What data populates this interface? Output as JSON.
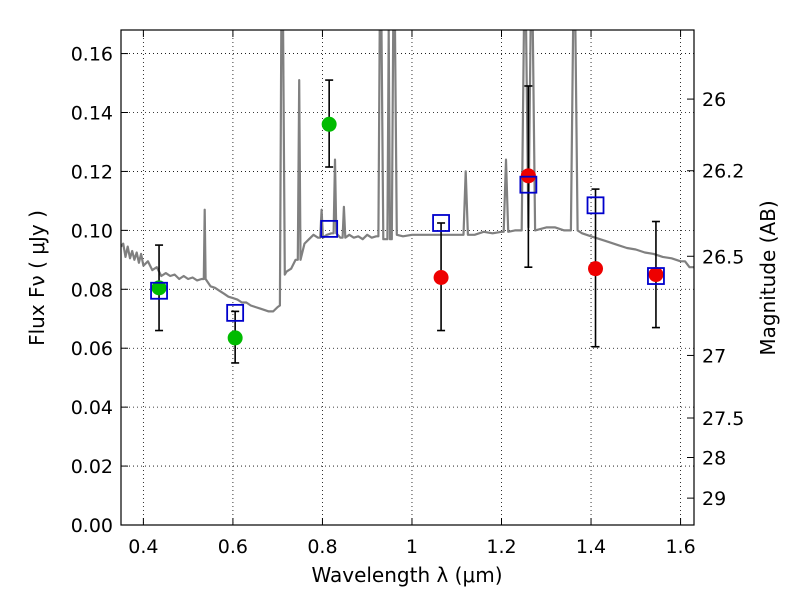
{
  "chart_data": {
    "type": "scatter",
    "title": "",
    "xlabel": "Wavelength  λ (μm)",
    "ylabel": "Flux  Fν  ( μJy )",
    "y2label": "Magnitude (AB)",
    "xlim": [
      0.35,
      1.63
    ],
    "ylim": [
      0.0,
      0.168
    ],
    "grid": true,
    "x_ticks": [
      {
        "value": 0.4,
        "label": "0.4"
      },
      {
        "value": 0.6,
        "label": "0.6"
      },
      {
        "value": 0.8,
        "label": "0.8"
      },
      {
        "value": 1.0,
        "label": "1"
      },
      {
        "value": 1.2,
        "label": "1.2"
      },
      {
        "value": 1.4,
        "label": "1.4"
      },
      {
        "value": 1.6,
        "label": "1.6"
      }
    ],
    "y_ticks": [
      {
        "value": 0.0,
        "label": "0.00"
      },
      {
        "value": 0.02,
        "label": "0.02"
      },
      {
        "value": 0.04,
        "label": "0.04"
      },
      {
        "value": 0.06,
        "label": "0.06"
      },
      {
        "value": 0.08,
        "label": "0.08"
      },
      {
        "value": 0.1,
        "label": "0.10"
      },
      {
        "value": 0.12,
        "label": "0.12"
      },
      {
        "value": 0.14,
        "label": "0.14"
      },
      {
        "value": 0.16,
        "label": "0.16"
      }
    ],
    "y2_ticks": [
      {
        "value": 26,
        "label": "26"
      },
      {
        "value": 26.2,
        "label": "26.2"
      },
      {
        "value": 26.5,
        "label": "26.5"
      },
      {
        "value": 27,
        "label": "27"
      },
      {
        "value": 27.5,
        "label": "27.5"
      },
      {
        "value": 28,
        "label": "28"
      },
      {
        "value": 29,
        "label": "29"
      }
    ],
    "colors": {
      "model": "#808080",
      "green": "#00bb00",
      "red": "#ee0000",
      "model_points": "#0000cc",
      "errorbar": "#000000"
    },
    "series": [
      {
        "kind": "line",
        "color_key": "model",
        "points": [
          [
            0.35,
            0.0945
          ],
          [
            0.355,
            0.0955
          ],
          [
            0.36,
            0.091
          ],
          [
            0.365,
            0.0945
          ],
          [
            0.37,
            0.0905
          ],
          [
            0.375,
            0.093
          ],
          [
            0.38,
            0.09
          ],
          [
            0.385,
            0.0925
          ],
          [
            0.39,
            0.089
          ],
          [
            0.395,
            0.092
          ],
          [
            0.4,
            0.088
          ],
          [
            0.41,
            0.0895
          ],
          [
            0.42,
            0.0865
          ],
          [
            0.43,
            0.0875
          ],
          [
            0.44,
            0.0845
          ],
          [
            0.45,
            0.0855
          ],
          [
            0.46,
            0.0845
          ],
          [
            0.47,
            0.085
          ],
          [
            0.48,
            0.0835
          ],
          [
            0.49,
            0.0845
          ],
          [
            0.5,
            0.0835
          ],
          [
            0.51,
            0.084
          ],
          [
            0.52,
            0.083
          ],
          [
            0.53,
            0.0835
          ],
          [
            0.535,
            0.0835
          ],
          [
            0.537,
            0.107
          ],
          [
            0.539,
            0.0835
          ],
          [
            0.55,
            0.081
          ],
          [
            0.56,
            0.0805
          ],
          [
            0.57,
            0.0795
          ],
          [
            0.58,
            0.0785
          ],
          [
            0.59,
            0.0775
          ],
          [
            0.6,
            0.077
          ],
          [
            0.61,
            0.0765
          ],
          [
            0.62,
            0.0755
          ],
          [
            0.63,
            0.0755
          ],
          [
            0.64,
            0.0745
          ],
          [
            0.65,
            0.074
          ],
          [
            0.66,
            0.0735
          ],
          [
            0.67,
            0.073
          ],
          [
            0.68,
            0.0725
          ],
          [
            0.69,
            0.0725
          ],
          [
            0.7,
            0.074
          ],
          [
            0.705,
            0.0745
          ],
          [
            0.708,
            0.168
          ],
          [
            0.712,
            0.168
          ],
          [
            0.716,
            0.085
          ],
          [
            0.72,
            0.086
          ],
          [
            0.73,
            0.087
          ],
          [
            0.74,
            0.09
          ],
          [
            0.745,
            0.09
          ],
          [
            0.748,
            0.151
          ],
          [
            0.751,
            0.09
          ],
          [
            0.76,
            0.0955
          ],
          [
            0.77,
            0.097
          ],
          [
            0.78,
            0.0985
          ],
          [
            0.79,
            0.0975
          ],
          [
            0.795,
            0.0975
          ],
          [
            0.798,
            0.107
          ],
          [
            0.801,
            0.0975
          ],
          [
            0.81,
            0.0985
          ],
          [
            0.82,
            0.099
          ],
          [
            0.825,
            0.099
          ],
          [
            0.828,
            0.124
          ],
          [
            0.831,
            0.099
          ],
          [
            0.84,
            0.0975
          ],
          [
            0.845,
            0.0975
          ],
          [
            0.848,
            0.108
          ],
          [
            0.851,
            0.0975
          ],
          [
            0.86,
            0.0985
          ],
          [
            0.87,
            0.0975
          ],
          [
            0.88,
            0.098
          ],
          [
            0.89,
            0.097
          ],
          [
            0.9,
            0.0985
          ],
          [
            0.91,
            0.0975
          ],
          [
            0.92,
            0.098
          ],
          [
            0.925,
            0.098
          ],
          [
            0.928,
            0.168
          ],
          [
            0.932,
            0.168
          ],
          [
            0.936,
            0.097
          ],
          [
            0.945,
            0.097
          ],
          [
            0.948,
            0.168
          ],
          [
            0.951,
            0.097
          ],
          [
            0.955,
            0.097
          ],
          [
            0.958,
            0.168
          ],
          [
            0.962,
            0.168
          ],
          [
            0.966,
            0.0985
          ],
          [
            0.98,
            0.098
          ],
          [
            1.0,
            0.0985
          ],
          [
            1.02,
            0.0985
          ],
          [
            1.04,
            0.0985
          ],
          [
            1.06,
            0.0985
          ],
          [
            1.08,
            0.0985
          ],
          [
            1.1,
            0.0985
          ],
          [
            1.115,
            0.0985
          ],
          [
            1.12,
            0.12
          ],
          [
            1.125,
            0.0985
          ],
          [
            1.14,
            0.0985
          ],
          [
            1.16,
            0.0995
          ],
          [
            1.18,
            0.099
          ],
          [
            1.2,
            0.0995
          ],
          [
            1.205,
            0.0995
          ],
          [
            1.21,
            0.124
          ],
          [
            1.215,
            0.0995
          ],
          [
            1.23,
            0.1
          ],
          [
            1.245,
            0.1
          ],
          [
            1.25,
            0.168
          ],
          [
            1.255,
            0.168
          ],
          [
            1.26,
            0.101
          ],
          [
            1.265,
            0.168
          ],
          [
            1.27,
            0.168
          ],
          [
            1.275,
            0.1
          ],
          [
            1.3,
            0.101
          ],
          [
            1.32,
            0.101
          ],
          [
            1.34,
            0.1
          ],
          [
            1.355,
            0.1
          ],
          [
            1.36,
            0.168
          ],
          [
            1.365,
            0.168
          ],
          [
            1.37,
            0.1
          ],
          [
            1.38,
            0.099
          ],
          [
            1.4,
            0.098
          ],
          [
            1.42,
            0.097
          ],
          [
            1.44,
            0.096
          ],
          [
            1.46,
            0.095
          ],
          [
            1.48,
            0.094
          ],
          [
            1.5,
            0.0935
          ],
          [
            1.52,
            0.0925
          ],
          [
            1.54,
            0.092
          ],
          [
            1.56,
            0.091
          ],
          [
            1.58,
            0.0905
          ],
          [
            1.6,
            0.0895
          ],
          [
            1.61,
            0.0895
          ],
          [
            1.62,
            0.0875
          ],
          [
            1.63,
            0.0875
          ]
        ]
      },
      {
        "kind": "points",
        "marker": "circle",
        "color_key": "green",
        "points": [
          {
            "x": 0.435,
            "y": 0.0805,
            "yerr_low": 0.066,
            "yerr_high": 0.095
          },
          {
            "x": 0.605,
            "y": 0.0635,
            "yerr_low": 0.055,
            "yerr_high": 0.0725
          },
          {
            "x": 0.815,
            "y": 0.136,
            "yerr_low": 0.1215,
            "yerr_high": 0.151
          }
        ]
      },
      {
        "kind": "points",
        "marker": "circle",
        "color_key": "red",
        "points": [
          {
            "x": 1.065,
            "y": 0.084,
            "yerr_low": 0.066,
            "yerr_high": 0.1025
          },
          {
            "x": 1.26,
            "y": 0.1185,
            "yerr_low": 0.0875,
            "yerr_high": 0.149
          },
          {
            "x": 1.41,
            "y": 0.087,
            "yerr_low": 0.0605,
            "yerr_high": 0.114
          },
          {
            "x": 1.545,
            "y": 0.085,
            "yerr_low": 0.067,
            "yerr_high": 0.103
          }
        ]
      },
      {
        "kind": "points",
        "marker": "open-square",
        "color_key": "model_points",
        "points": [
          {
            "x": 0.435,
            "y": 0.0795
          },
          {
            "x": 0.605,
            "y": 0.072
          },
          {
            "x": 0.815,
            "y": 0.1005
          },
          {
            "x": 1.065,
            "y": 0.1025
          },
          {
            "x": 1.26,
            "y": 0.1155
          },
          {
            "x": 1.41,
            "y": 0.1085
          },
          {
            "x": 1.545,
            "y": 0.0845
          }
        ]
      }
    ]
  }
}
